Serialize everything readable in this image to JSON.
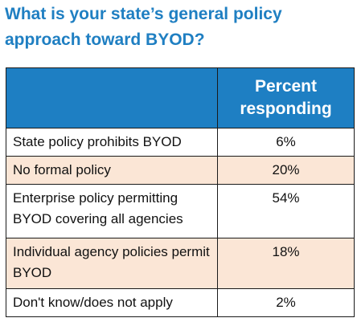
{
  "chart_data": {
    "type": "table",
    "title": "What is your state’s general policy approach toward BYOD?",
    "columns": [
      "",
      "Percent responding"
    ],
    "rows": [
      {
        "label": "State policy prohibits BYOD",
        "value": "6%",
        "shaded": false
      },
      {
        "label": "No formal policy",
        "value": "20%",
        "shaded": true
      },
      {
        "label": "Enterprise policy permitting BYOD covering all agencies",
        "value": "54%",
        "shaded": false
      },
      {
        "label": "Individual agency policies permit BYOD",
        "value": "18%",
        "shaded": true
      },
      {
        "label": "Don't know/does not apply",
        "value": "2%",
        "shaded": false
      }
    ]
  },
  "colors": {
    "title": "#1f7fc2",
    "header_bg": "#1e7fc3",
    "header_text": "#ffffff",
    "shaded_row": "#fbe6d6"
  }
}
